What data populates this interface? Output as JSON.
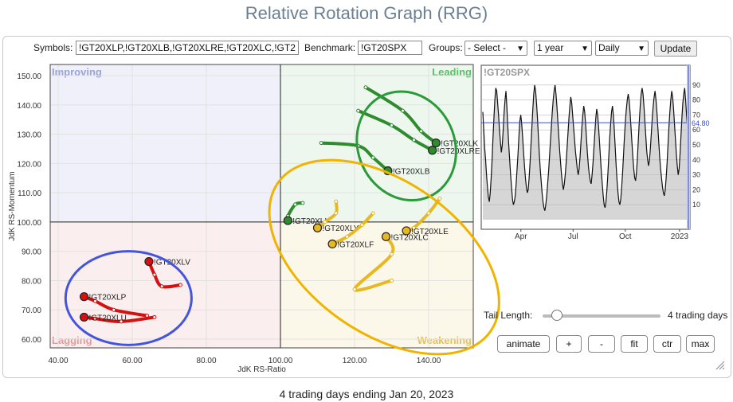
{
  "title": "Relative Rotation Graph (RRG)",
  "controls": {
    "symbols_label": "Symbols:",
    "symbols_value": "!GT20XLP,!GT20XLB,!GT20XLRE,!GT20XLC,!GT2",
    "benchmark_label": "Benchmark:",
    "benchmark_value": "!GT20SPX",
    "groups_label": "Groups:",
    "groups_value": "- Select -",
    "period_value": "1 year",
    "frequency_value": "Daily",
    "update_label": "Update"
  },
  "icons": {
    "dropdown": "chevron-down-icon",
    "resize": "resize-grip-icon"
  },
  "tail": {
    "label": "Tail Length:",
    "value_text": "4 trading days",
    "slider_fraction": 0.08
  },
  "buttons": {
    "animate": "animate",
    "plus": "+",
    "minus": "-",
    "fit": "fit",
    "ctr": "ctr",
    "max": "max"
  },
  "footer": "4 trading days ending Jan 20, 2023",
  "chart_data": [
    {
      "type": "scatter",
      "xlabel": "JdK RS-Ratio",
      "ylabel": "JdK RS-Momentum",
      "xlim": [
        40,
        151
      ],
      "ylim": [
        57,
        155
      ],
      "x_ticks": [
        40,
        60,
        80,
        100,
        120,
        140
      ],
      "x_tick_labels": [
        "40.00",
        "60.00",
        "80.00",
        "100.00",
        "120.00",
        "140.00"
      ],
      "y_ticks": [
        60,
        70,
        80,
        90,
        100,
        110,
        120,
        130,
        140,
        150
      ],
      "y_tick_labels": [
        "60.00",
        "70.00",
        "80.00",
        "90.00",
        "100.00",
        "110.00",
        "120.00",
        "130.00",
        "140.00",
        "150.00"
      ],
      "quadrants": [
        {
          "label": "Improving",
          "color": "#9aa4d6",
          "fill": "#f0f0fb"
        },
        {
          "label": "Leading",
          "color": "#5cbf6a",
          "fill": "#eef7ee"
        },
        {
          "label": "Lagging",
          "color": "#e49a9a",
          "fill": "#fbeeee"
        },
        {
          "label": "Weakening",
          "color": "#e6c25a",
          "fill": "#fbf8ea"
        }
      ],
      "series": [
        {
          "name": "!GT20XLK",
          "color": "#2e8b2e",
          "points": [
            [
              123,
              146
            ],
            [
              133,
              138
            ],
            [
              138,
              131
            ],
            [
              142,
              127
            ]
          ]
        },
        {
          "name": "!GT20XLRE",
          "color": "#2e8b2e",
          "points": [
            [
              121,
              138
            ],
            [
              130,
              133
            ],
            [
              136,
              128
            ],
            [
              141,
              124.5
            ]
          ]
        },
        {
          "name": "!GT20XLB",
          "color": "#2e8b2e",
          "points": [
            [
              111,
              127
            ],
            [
              121,
              126
            ],
            [
              125,
              122
            ],
            [
              129,
              117.5
            ]
          ]
        },
        {
          "name": "!GT20XLI",
          "color": "#2e8b2e",
          "points": [
            [
              106,
              106.5
            ],
            [
              104,
              106
            ],
            [
              102,
              102
            ],
            [
              102,
              100.5
            ]
          ]
        },
        {
          "name": "!GT20XLY",
          "color": "#e8b820",
          "points": [
            [
              115,
              107
            ],
            [
              115,
              103
            ],
            [
              112,
              100
            ],
            [
              110,
              98
            ]
          ]
        },
        {
          "name": "!GT20XLF",
          "color": "#e8b820",
          "points": [
            [
              125,
              103
            ],
            [
              122,
              99
            ],
            [
              118,
              95
            ],
            [
              114,
              92.5
            ]
          ]
        },
        {
          "name": "!GT20XLC",
          "color": "#e8b820",
          "points": [
            [
              130,
              80
            ],
            [
              120,
              77
            ],
            [
              130,
              89
            ],
            [
              128.5,
              95
            ]
          ]
        },
        {
          "name": "!GT20XLE",
          "color": "#e8b820",
          "points": [
            [
              143,
              108
            ],
            [
              140,
              103
            ],
            [
              136,
              98
            ],
            [
              134,
              97
            ]
          ]
        },
        {
          "name": "!GT20XLV",
          "color": "#d41111",
          "points": [
            [
              73,
              78.5
            ],
            [
              68,
              78
            ],
            [
              66,
              82
            ],
            [
              64.5,
              86.5
            ]
          ]
        },
        {
          "name": "!GT20XLP",
          "color": "#d41111",
          "points": [
            [
              64,
              68
            ],
            [
              55,
              70
            ],
            [
              50,
              73
            ],
            [
              47,
              74.5
            ]
          ]
        },
        {
          "name": "!GT20XLU",
          "color": "#d41111",
          "points": [
            [
              66,
              67.5
            ],
            [
              57,
              66
            ],
            [
              50,
              67
            ],
            [
              47,
              67.5
            ]
          ]
        }
      ],
      "annotation_ellipses": [
        {
          "color": "#2a9a3a",
          "cx": 134,
          "cy": 126,
          "rx": 13,
          "ry": 19
        },
        {
          "color": "#f0b400",
          "cx": 128,
          "cy": 88,
          "rx": 35,
          "ry": 26
        },
        {
          "color": "#4455dd",
          "cx": 59,
          "cy": 74,
          "rx": 17,
          "ry": 16
        }
      ]
    },
    {
      "type": "line",
      "title": "!GT20SPX",
      "x_tick_labels": [
        "Apr",
        "Jul",
        "Oct",
        "2023"
      ],
      "x_tick_positions": [
        0.19,
        0.44,
        0.69,
        0.95
      ],
      "y_ticks": [
        10,
        20,
        30,
        40,
        50,
        60,
        70,
        80,
        90
      ],
      "ylim": [
        0,
        100
      ],
      "current_value": 64.8,
      "current_value_label": "64.80",
      "values": [
        72,
        60,
        48,
        40,
        30,
        22,
        15,
        12,
        18,
        28,
        40,
        55,
        68,
        80,
        88,
        86,
        78,
        70,
        60,
        52,
        45,
        50,
        60,
        72,
        80,
        86,
        75,
        62,
        50,
        40,
        30,
        22,
        14,
        10,
        12,
        16,
        24,
        34,
        44,
        56,
        66,
        70,
        64,
        55,
        45,
        36,
        28,
        22,
        18,
        20,
        28,
        38,
        50,
        62,
        74,
        84,
        90,
        86,
        78,
        68,
        56,
        44,
        34,
        26,
        18,
        12,
        8,
        6,
        10,
        16,
        24,
        32,
        42,
        52,
        62,
        72,
        80,
        86,
        90,
        84,
        76,
        66,
        56,
        46,
        38,
        30,
        24,
        20,
        24,
        30,
        38,
        48,
        58,
        68,
        76,
        82,
        78,
        70,
        62,
        54,
        46,
        40,
        34,
        30,
        34,
        42,
        52,
        62,
        70,
        76,
        72,
        64,
        54,
        44,
        36,
        30,
        26,
        24,
        30,
        38,
        48,
        58,
        68,
        74,
        70,
        62,
        52,
        42,
        32,
        24,
        16,
        10,
        8,
        12,
        20,
        30,
        42,
        54,
        64,
        72,
        76,
        70,
        60,
        48,
        36,
        26,
        18,
        12,
        10,
        14,
        22,
        32,
        44,
        56,
        66,
        74,
        80,
        84,
        80,
        72,
        62,
        52,
        42,
        34,
        28,
        26,
        32,
        42,
        54,
        66,
        76,
        84,
        88,
        84,
        76,
        66,
        56,
        46,
        40,
        36,
        40,
        48,
        58,
        68,
        76,
        82,
        86,
        80,
        72,
        62,
        52,
        42,
        34,
        28,
        22,
        18,
        16,
        20,
        28,
        38,
        50,
        62,
        72,
        80,
        86,
        82,
        74,
        64,
        54,
        44,
        36,
        30,
        34,
        44,
        56,
        68,
        78,
        84,
        88,
        80,
        70,
        62,
        64.8
      ]
    }
  ]
}
